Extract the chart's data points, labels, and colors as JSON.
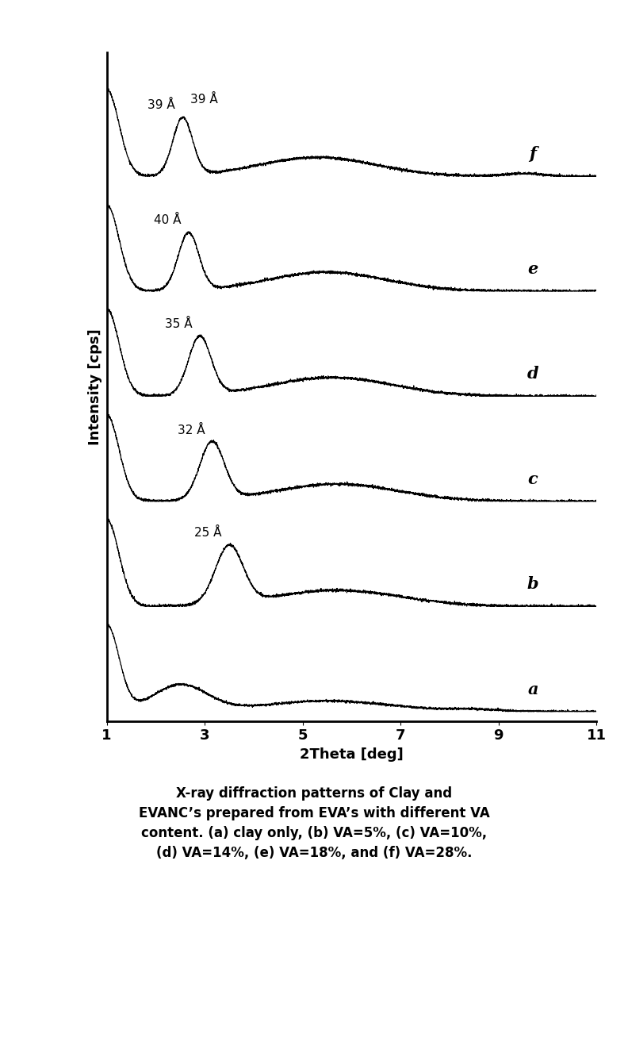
{
  "xlabel": "2Theta [deg]",
  "ylabel": "Intensity [cps]",
  "xlim": [
    1,
    11
  ],
  "xticks": [
    1,
    3,
    5,
    7,
    9,
    11
  ],
  "series_labels": [
    "a",
    "b",
    "c",
    "d",
    "e",
    "f"
  ],
  "peak_annotations": [
    {
      "label": "25 Å",
      "x": 3.5,
      "curve_idx": 1
    },
    {
      "label": "32 Å",
      "x": 3.15,
      "curve_idx": 2
    },
    {
      "label": "35 Å",
      "x": 2.9,
      "curve_idx": 3
    },
    {
      "label": "40 Å",
      "x": 2.67,
      "curve_idx": 4
    },
    {
      "label": "39 Å",
      "x": 2.55,
      "curve_idx": 5
    },
    {
      "label": "39 Å",
      "x": 2.55,
      "curve_idx": 5,
      "top": true
    }
  ],
  "offsets_y": [
    0.0,
    1.1,
    2.2,
    3.3,
    4.4,
    5.6
  ],
  "caption_line1": "X-ray diffraction patterns of Clay and",
  "caption_line2": "EVANC’s prepared from EVA’s with different VA",
  "caption_line3": "content. (a) clay only, (b) VA=5%, (c) VA=10%,",
  "caption_line4": "(d) VA=14%, (e) VA=18%, and (f) VA=28%.",
  "background_color": "#ffffff",
  "line_color": "#000000",
  "label_fontsize": 13,
  "tick_fontsize": 13,
  "caption_fontsize": 12,
  "series_label_fontsize": 15,
  "annot_fontsize": 11
}
